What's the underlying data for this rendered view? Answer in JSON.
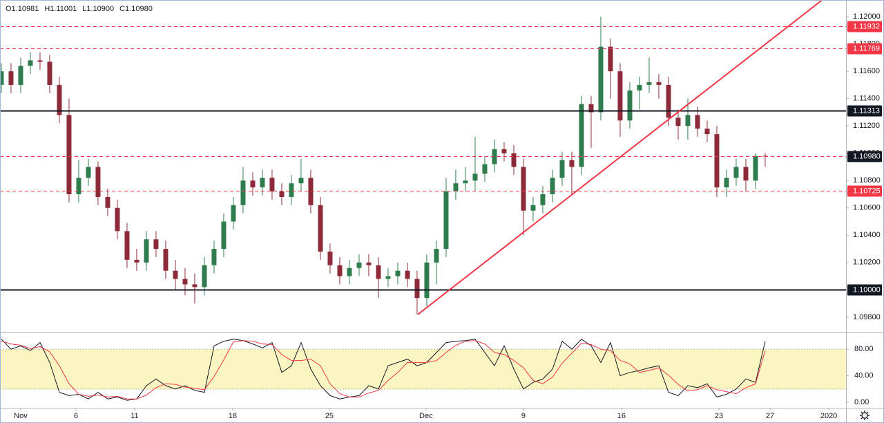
{
  "chart_data": [
    {
      "type": "candlestick",
      "ohlc_legend": [
        "O1.10981",
        "H1.11001",
        "L1.10900",
        "C1.10980"
      ],
      "up_color": "#2f7d4f",
      "down_color": "#8e2b3a",
      "x": [
        -1,
        -0.5,
        0,
        0.5,
        1,
        1.5,
        2,
        2.5,
        3,
        3.5,
        4,
        4.5,
        5,
        5.5,
        6,
        6.5,
        7,
        7.5,
        8,
        8.5,
        9,
        9.5,
        10,
        10.5,
        11,
        11.5,
        12,
        12.5,
        13,
        13.5,
        14,
        14.5,
        15,
        15.5,
        16,
        16.5,
        17,
        17.5,
        18,
        18.5,
        19,
        19.5,
        20,
        20.5,
        21,
        21.5,
        22,
        22.5,
        23,
        23.5,
        24,
        24.5,
        25,
        25.5,
        26,
        26.5,
        27,
        27.5,
        28,
        28.5,
        29,
        29.5,
        30,
        30.5,
        31,
        31.5,
        32,
        32.5,
        33,
        33.5,
        34,
        34.5,
        35,
        35.5,
        36,
        36.5,
        37,
        37.5,
        38,
        38.5
      ],
      "open": [
        1.115,
        1.116,
        1.115,
        1.1164,
        1.1168,
        1.1167,
        1.115,
        1.1128,
        1.107,
        1.1082,
        1.109,
        1.1068,
        1.106,
        1.1043,
        1.1022,
        1.102,
        1.1037,
        1.103,
        1.1014,
        1.1008,
        1.1004,
        1.1002,
        1.1018,
        1.103,
        1.105,
        1.1062,
        1.108,
        1.1075,
        1.1082,
        1.1072,
        1.1068,
        1.1078,
        1.1082,
        1.1062,
        1.1028,
        1.1018,
        1.101,
        1.1016,
        1.102,
        1.1018,
        1.1008,
        1.101,
        1.1014,
        1.1008,
        1.0994,
        1.102,
        1.103,
        1.1072,
        1.1078,
        1.108,
        1.1085,
        1.1092,
        1.1103,
        1.11,
        1.109,
        1.1058,
        1.1062,
        1.107,
        1.1082,
        1.1095,
        1.109,
        1.1136,
        1.113,
        1.1178,
        1.116,
        1.1124,
        1.1146,
        1.115,
        1.1152,
        1.115,
        1.1126,
        1.112,
        1.1128,
        1.1118,
        1.1114,
        1.1075,
        1.1082,
        1.109,
        1.108,
        1.10981
      ],
      "high": [
        1.1166,
        1.1166,
        1.117,
        1.1174,
        1.1174,
        1.1172,
        1.1156,
        1.114,
        1.1095,
        1.1096,
        1.1094,
        1.1074,
        1.1066,
        1.1049,
        1.103,
        1.1043,
        1.1043,
        1.1036,
        1.1022,
        1.1016,
        1.1012,
        1.1024,
        1.1036,
        1.1056,
        1.1068,
        1.109,
        1.1086,
        1.1088,
        1.1088,
        1.1078,
        1.1084,
        1.1096,
        1.1088,
        1.1068,
        1.1034,
        1.1024,
        1.1022,
        1.1026,
        1.1026,
        1.1024,
        1.1016,
        1.102,
        1.102,
        1.1014,
        1.1026,
        1.1036,
        1.1082,
        1.1088,
        1.109,
        1.1112,
        1.1098,
        1.111,
        1.1108,
        1.1106,
        1.1096,
        1.1068,
        1.1076,
        1.1088,
        1.1101,
        1.1101,
        1.1142,
        1.1142,
        1.12,
        1.1184,
        1.1166,
        1.1152,
        1.1156,
        1.117,
        1.1158,
        1.1156,
        1.1132,
        1.114,
        1.1134,
        1.1124,
        1.112,
        1.1088,
        1.1096,
        1.1096,
        1.11,
        1.11001
      ],
      "low": [
        1.1144,
        1.1144,
        1.1144,
        1.1158,
        1.1161,
        1.1144,
        1.1122,
        1.1064,
        1.1064,
        1.1076,
        1.1062,
        1.1054,
        1.1037,
        1.1016,
        1.1014,
        1.1014,
        1.1024,
        1.1008,
        1.1,
        1.0996,
        1.099,
        1.0996,
        1.1012,
        1.1024,
        1.1044,
        1.1056,
        1.1069,
        1.1069,
        1.1066,
        1.1062,
        1.1062,
        1.1072,
        1.1056,
        1.1022,
        1.1012,
        1.1004,
        1.1004,
        1.101,
        1.101,
        1.0994,
        1.1002,
        1.1004,
        1.1002,
        1.0982,
        1.0988,
        1.1004,
        1.1024,
        1.1066,
        1.1072,
        1.1072,
        1.1079,
        1.1086,
        1.1094,
        1.1084,
        1.104,
        1.105,
        1.1056,
        1.1064,
        1.1076,
        1.107,
        1.1084,
        1.1104,
        1.1124,
        1.114,
        1.1112,
        1.1118,
        1.1132,
        1.1144,
        1.114,
        1.112,
        1.111,
        1.111,
        1.1112,
        1.1108,
        1.1068,
        1.1068,
        1.1076,
        1.1072,
        1.1074,
        1.109
      ],
      "close": [
        1.116,
        1.115,
        1.1164,
        1.1168,
        1.1167,
        1.115,
        1.1128,
        1.107,
        1.1082,
        1.109,
        1.1068,
        1.106,
        1.1043,
        1.1022,
        1.102,
        1.1037,
        1.103,
        1.1014,
        1.1008,
        1.1004,
        1.1002,
        1.1018,
        1.103,
        1.105,
        1.1062,
        1.108,
        1.1075,
        1.1082,
        1.1072,
        1.1068,
        1.1078,
        1.1082,
        1.1062,
        1.1028,
        1.1018,
        1.101,
        1.1016,
        1.102,
        1.1018,
        1.1008,
        1.101,
        1.1014,
        1.1008,
        1.0994,
        1.102,
        1.103,
        1.1072,
        1.1078,
        1.108,
        1.1085,
        1.1092,
        1.1103,
        1.11,
        1.109,
        1.1058,
        1.1062,
        1.107,
        1.1082,
        1.1095,
        1.109,
        1.1136,
        1.113,
        1.1178,
        1.116,
        1.1124,
        1.1146,
        1.115,
        1.1152,
        1.115,
        1.1126,
        1.112,
        1.1128,
        1.1118,
        1.1114,
        1.1075,
        1.1082,
        1.109,
        1.108,
        1.1098,
        1.1098
      ],
      "xlim": [
        -1.07,
        42.68
      ],
      "ylim": [
        1.09688,
        1.12122
      ],
      "yticks": [
        {
          "value": 1.098,
          "label": "1.09800"
        },
        {
          "value": 1.1,
          "label": "1.10000"
        },
        {
          "value": 1.102,
          "label": "1.10200"
        },
        {
          "value": 1.104,
          "label": "1.10400"
        },
        {
          "value": 1.106,
          "label": "1.10600"
        },
        {
          "value": 1.108,
          "label": "1.10800"
        },
        {
          "value": 1.11,
          "label": "1.11000"
        },
        {
          "value": 1.112,
          "label": "1.11200"
        },
        {
          "value": 1.114,
          "label": "1.11400"
        },
        {
          "value": 1.116,
          "label": "1.11600"
        },
        {
          "value": 1.118,
          "label": "1.11800"
        },
        {
          "value": 1.12,
          "label": "1.12000"
        }
      ],
      "levels": [
        {
          "value": 1.11932,
          "color": "#f23645",
          "dashed": true
        },
        {
          "value": 1.11769,
          "color": "#f23645",
          "dashed": true
        },
        {
          "value": 1.11313,
          "color": "#131722",
          "dashed": false
        },
        {
          "value": 1.1098,
          "label": "1.10980",
          "color": "#f23645",
          "dashed": true,
          "tag_color": "#131722"
        },
        {
          "value": 1.10725,
          "color": "#f23645",
          "dashed": true
        },
        {
          "value": 1.1,
          "label": "1.10000",
          "color": "#131722",
          "dashed": false
        }
      ],
      "trendline": {
        "x": [
          20.54,
          41.43
        ],
        "y": [
          1.0982,
          1.1212
        ],
        "color": "#f23645"
      }
    },
    {
      "type": "line",
      "x": [
        -1,
        -0.5,
        0,
        0.5,
        1,
        1.5,
        2,
        2.5,
        3,
        3.5,
        4,
        4.5,
        5,
        5.5,
        6,
        6.5,
        7,
        7.5,
        8,
        8.5,
        9,
        9.5,
        10,
        10.5,
        11,
        11.5,
        12,
        12.5,
        13,
        13.5,
        14,
        14.5,
        15,
        15.5,
        16,
        16.5,
        17,
        17.5,
        18,
        18.5,
        19,
        19.5,
        20,
        20.5,
        21,
        21.5,
        22,
        22.5,
        23,
        23.5,
        24,
        24.5,
        25,
        25.5,
        26,
        26.5,
        27,
        27.5,
        28,
        28.5,
        29,
        29.5,
        30,
        30.5,
        31,
        31.5,
        32,
        32.5,
        33,
        33.5,
        34,
        34.5,
        35,
        35.5,
        36,
        36.5,
        37,
        37.5,
        38,
        38.5
      ],
      "series": [
        {
          "color": "#131722",
          "values": [
            95,
            80,
            85,
            78,
            90,
            60,
            15,
            10,
            12,
            5,
            15,
            5,
            8,
            3,
            5,
            25,
            35,
            25,
            20,
            25,
            18,
            15,
            85,
            92,
            95,
            93,
            88,
            82,
            90,
            45,
            55,
            90,
            50,
            25,
            10,
            5,
            8,
            10,
            25,
            20,
            55,
            60,
            65,
            55,
            60,
            75,
            90,
            92,
            93,
            95,
            75,
            55,
            85,
            50,
            20,
            30,
            35,
            50,
            92,
            80,
            95,
            85,
            60,
            90,
            40,
            45,
            48,
            52,
            55,
            15,
            10,
            25,
            22,
            28,
            8,
            12,
            20,
            35,
            30,
            92
          ]
        },
        {
          "color": "#f23645",
          "values": [
            92,
            88,
            86,
            81,
            84,
            76,
            55,
            28,
            12,
            9,
            11,
            8,
            9,
            5,
            5,
            11,
            22,
            28,
            27,
            23,
            21,
            19,
            39,
            64,
            91,
            93,
            92,
            88,
            87,
            72,
            63,
            63,
            65,
            55,
            28,
            13,
            8,
            8,
            14,
            18,
            33,
            45,
            60,
            60,
            60,
            63,
            75,
            86,
            92,
            93,
            88,
            75,
            72,
            63,
            52,
            33,
            28,
            38,
            59,
            74,
            89,
            87,
            80,
            78,
            63,
            58,
            45,
            48,
            52,
            41,
            27,
            17,
            19,
            25,
            19,
            16,
            13,
            22,
            28,
            78
          ]
        }
      ],
      "band": [
        20,
        80
      ],
      "band_color": "#fbf5c2",
      "xlim": [
        -1.07,
        42.68
      ],
      "ylim": [
        -8.3,
        104.2
      ],
      "yticks": [
        {
          "value": 0,
          "label": "0.00"
        },
        {
          "value": 40,
          "label": "40.00"
        },
        {
          "value": 80,
          "label": "80.00"
        }
      ],
      "xticks": [
        {
          "value": 0,
          "label": "Nov"
        },
        {
          "value": 2.86,
          "label": "6"
        },
        {
          "value": 5.89,
          "label": "11"
        },
        {
          "value": 10.96,
          "label": "18"
        },
        {
          "value": 15.96,
          "label": "25"
        },
        {
          "value": 20.96,
          "label": "Dec"
        },
        {
          "value": 26,
          "label": "9"
        },
        {
          "value": 31.07,
          "label": "16"
        },
        {
          "value": 36.11,
          "label": "23"
        },
        {
          "value": 38.75,
          "label": "27"
        },
        {
          "value": 41.79,
          "label": "2020"
        }
      ]
    }
  ]
}
